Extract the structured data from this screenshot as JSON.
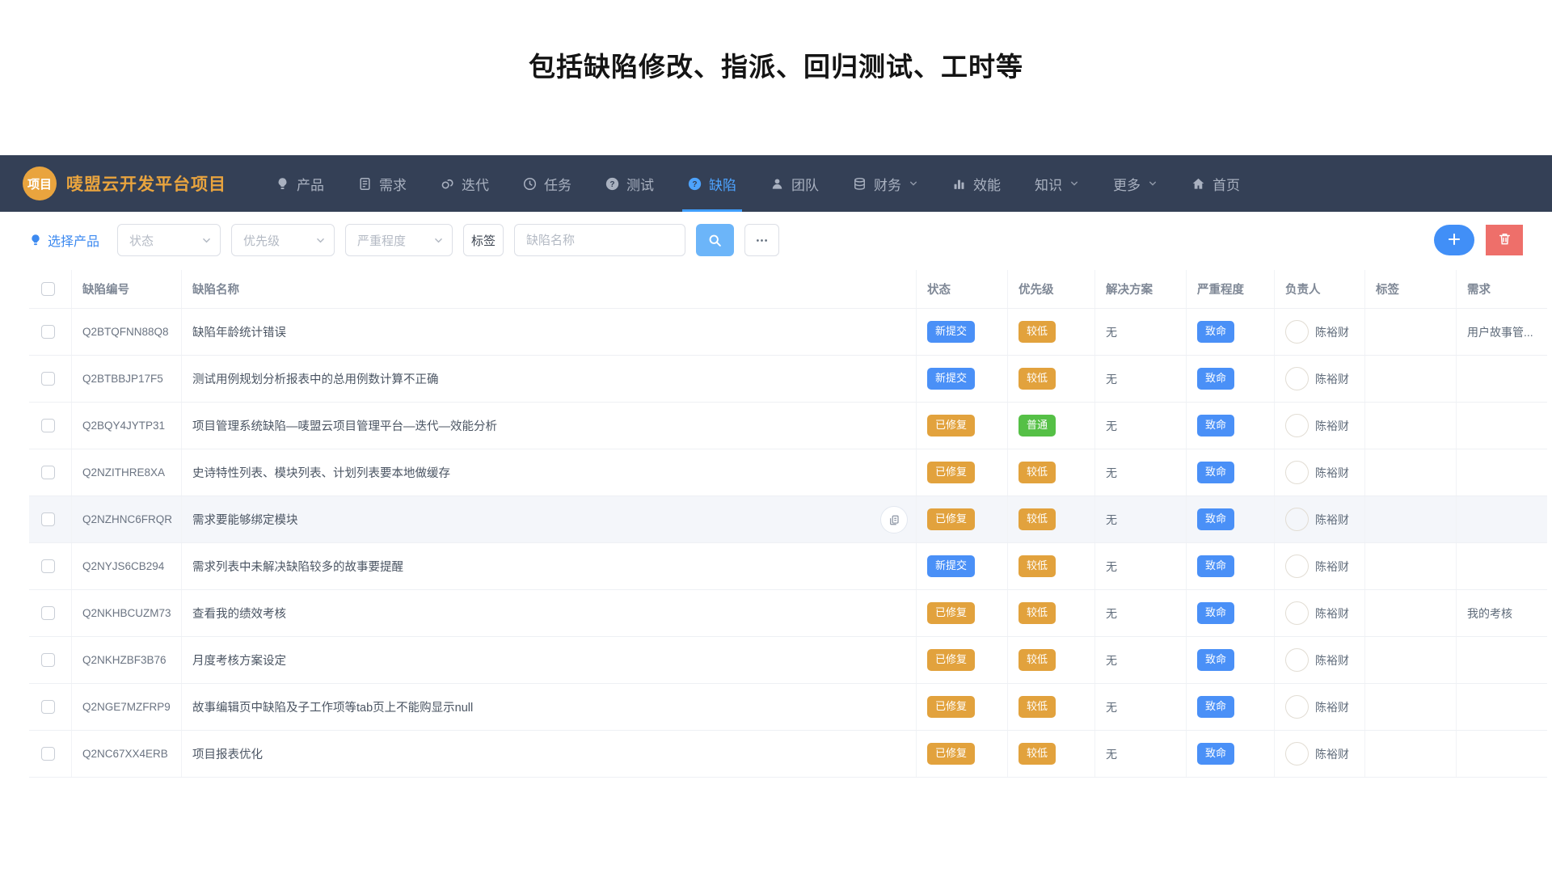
{
  "page": {
    "title": "包括缺陷修改、指派、回归测试、工时等"
  },
  "navbar": {
    "logo_text": "项目",
    "brand": "唛盟云开发平台项目",
    "active_color": "#409eff",
    "items": [
      {
        "key": "product",
        "label": "产品",
        "icon": "bulb-icon",
        "chevron": false,
        "active": false
      },
      {
        "key": "story",
        "label": "需求",
        "icon": "document-icon",
        "chevron": false,
        "active": false
      },
      {
        "key": "iteration",
        "label": "迭代",
        "icon": "link-icon",
        "chevron": false,
        "active": false
      },
      {
        "key": "task",
        "label": "任务",
        "icon": "clock-icon",
        "chevron": false,
        "active": false
      },
      {
        "key": "test",
        "label": "测试",
        "icon": "question-circle-icon",
        "chevron": false,
        "active": false
      },
      {
        "key": "defect",
        "label": "缺陷",
        "icon": "question-circle-icon",
        "chevron": false,
        "active": true
      },
      {
        "key": "team",
        "label": "团队",
        "icon": "person-icon",
        "chevron": false,
        "active": false
      },
      {
        "key": "finance",
        "label": "财务",
        "icon": "database-icon",
        "chevron": true,
        "active": false
      },
      {
        "key": "perf",
        "label": "效能",
        "icon": "bar-chart-icon",
        "chevron": false,
        "active": false
      },
      {
        "key": "knowledge",
        "label": "知识",
        "icon": "",
        "chevron": true,
        "active": false
      },
      {
        "key": "more",
        "label": "更多",
        "icon": "",
        "chevron": true,
        "active": false
      },
      {
        "key": "home",
        "label": "首页",
        "icon": "home-icon",
        "chevron": false,
        "active": false
      }
    ]
  },
  "filters": {
    "select_product_label": "选择产品",
    "status_placeholder": "状态",
    "priority_placeholder": "优先级",
    "severity_placeholder": "严重程度",
    "tag_button_label": "标签",
    "name_placeholder": "缺陷名称",
    "more_button_label": "…"
  },
  "colors": {
    "navbar_bg": "#344056",
    "accent_blue": "#4a90f7",
    "badge_orange": "#e2a23d",
    "badge_green": "#55c046",
    "add_button": "#418ff7",
    "delete_button": "#ee6f6a",
    "search_button": "#6cb5f9",
    "brand_orange": "#e9a43e"
  },
  "table": {
    "columns": [
      "缺陷编号",
      "缺陷名称",
      "状态",
      "优先级",
      "解决方案",
      "严重程度",
      "负责人",
      "标签",
      "需求"
    ],
    "rows": [
      {
        "id": "Q2BTQFNN88Q8",
        "name": "缺陷年龄统计错误",
        "status": "新提交",
        "status_color": "blue",
        "priority": "较低",
        "priority_color": "orange",
        "solution": "无",
        "severity": "致命",
        "severity_color": "blue",
        "owner": "陈裕财",
        "tag": "",
        "requirement": "用户故事管...",
        "highlighted": false,
        "copy_icon": false
      },
      {
        "id": "Q2BTBBJP17F5",
        "name": "测试用例规划分析报表中的总用例数计算不正确",
        "status": "新提交",
        "status_color": "blue",
        "priority": "较低",
        "priority_color": "orange",
        "solution": "无",
        "severity": "致命",
        "severity_color": "blue",
        "owner": "陈裕财",
        "tag": "",
        "requirement": "",
        "highlighted": false,
        "copy_icon": false
      },
      {
        "id": "Q2BQY4JYTP31",
        "name": "项目管理系统缺陷—唛盟云项目管理平台—迭代—效能分析",
        "status": "已修复",
        "status_color": "orange",
        "priority": "普通",
        "priority_color": "green",
        "solution": "无",
        "severity": "致命",
        "severity_color": "blue",
        "owner": "陈裕财",
        "tag": "",
        "requirement": "",
        "highlighted": false,
        "copy_icon": false
      },
      {
        "id": "Q2NZITHRE8XA",
        "name": "史诗特性列表、模块列表、计划列表要本地做缓存",
        "status": "已修复",
        "status_color": "orange",
        "priority": "较低",
        "priority_color": "orange",
        "solution": "无",
        "severity": "致命",
        "severity_color": "blue",
        "owner": "陈裕财",
        "tag": "",
        "requirement": "",
        "highlighted": false,
        "copy_icon": false
      },
      {
        "id": "Q2NZHNC6FRQR",
        "name": "需求要能够绑定模块",
        "status": "已修复",
        "status_color": "orange",
        "priority": "较低",
        "priority_color": "orange",
        "solution": "无",
        "severity": "致命",
        "severity_color": "blue",
        "owner": "陈裕财",
        "tag": "",
        "requirement": "",
        "highlighted": true,
        "copy_icon": true
      },
      {
        "id": "Q2NYJS6CB294",
        "name": "需求列表中未解决缺陷较多的故事要提醒",
        "status": "新提交",
        "status_color": "blue",
        "priority": "较低",
        "priority_color": "orange",
        "solution": "无",
        "severity": "致命",
        "severity_color": "blue",
        "owner": "陈裕财",
        "tag": "",
        "requirement": "",
        "highlighted": false,
        "copy_icon": false
      },
      {
        "id": "Q2NKHBCUZM73",
        "name": "查看我的绩效考核",
        "status": "已修复",
        "status_color": "orange",
        "priority": "较低",
        "priority_color": "orange",
        "solution": "无",
        "severity": "致命",
        "severity_color": "blue",
        "owner": "陈裕财",
        "tag": "",
        "requirement": "我的考核",
        "highlighted": false,
        "copy_icon": false
      },
      {
        "id": "Q2NKHZBF3B76",
        "name": "月度考核方案设定",
        "status": "已修复",
        "status_color": "orange",
        "priority": "较低",
        "priority_color": "orange",
        "solution": "无",
        "severity": "致命",
        "severity_color": "blue",
        "owner": "陈裕财",
        "tag": "",
        "requirement": "",
        "highlighted": false,
        "copy_icon": false
      },
      {
        "id": "Q2NGE7MZFRP9",
        "name": "故事编辑页中缺陷及子工作项等tab页上不能购显示null",
        "status": "已修复",
        "status_color": "orange",
        "priority": "较低",
        "priority_color": "orange",
        "solution": "无",
        "severity": "致命",
        "severity_color": "blue",
        "owner": "陈裕财",
        "tag": "",
        "requirement": "",
        "highlighted": false,
        "copy_icon": false
      },
      {
        "id": "Q2NC67XX4ERB",
        "name": "项目报表优化",
        "status": "已修复",
        "status_color": "orange",
        "priority": "较低",
        "priority_color": "orange",
        "solution": "无",
        "severity": "致命",
        "severity_color": "blue",
        "owner": "陈裕财",
        "tag": "",
        "requirement": "",
        "highlighted": false,
        "copy_icon": false
      }
    ]
  }
}
